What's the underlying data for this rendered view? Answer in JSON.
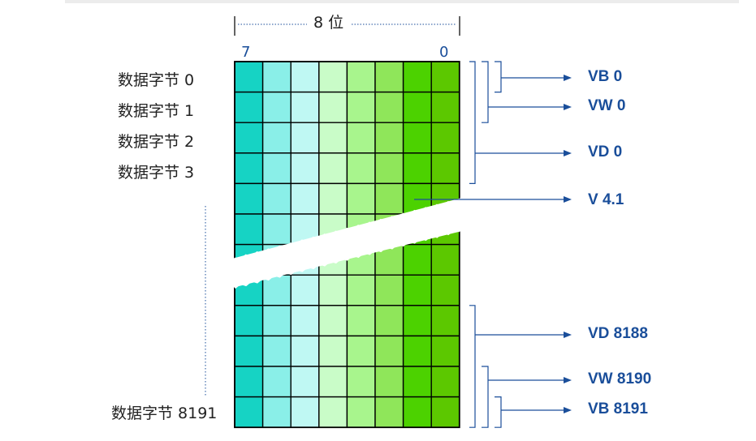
{
  "header": {
    "bits_label": "8 位",
    "msb_label": "7",
    "lsb_label": "0"
  },
  "byte_labels": [
    "数据字节 0",
    "数据字节 1",
    "数据字节 2",
    "数据字节 3",
    "数据字节 8191"
  ],
  "address_labels": {
    "vb0": "VB 0",
    "vw0": "VW 0",
    "vd0": "VD 0",
    "v41": "V 4.1",
    "vd8188": "VD 8188",
    "vw8190": "VW 8190",
    "vb8191": "VB 8191"
  },
  "colors": {
    "columns": [
      "#16d3c4",
      "#8aefe8",
      "#bff8f3",
      "#c9fcc8",
      "#a8f58d",
      "#8fe65a",
      "#4cd200",
      "#5cc800"
    ],
    "arrow": "#1a4e9a",
    "grid": "#000000"
  }
}
